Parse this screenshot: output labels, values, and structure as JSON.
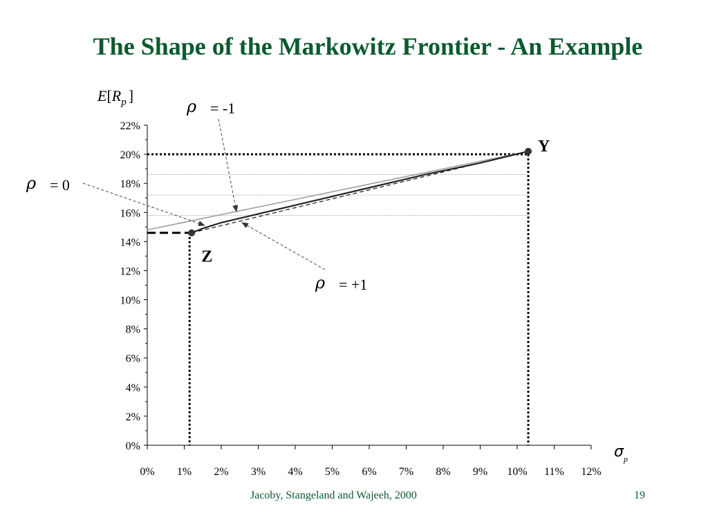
{
  "slide": {
    "title": "The Shape of the Markowitz Frontier - An Example",
    "footer_citation": "Jacoby, Stangeland and Wajeeh, 2000",
    "page_number": "19",
    "title_color": "#0b5a2e"
  },
  "chart_data": {
    "type": "line",
    "ylabel": {
      "E": "E",
      "open": "[",
      "R": "R",
      "sub": "p",
      "close": "]"
    },
    "xlabel": {
      "sigma": "σ",
      "sub": "p"
    },
    "x_ticks": [
      "0%",
      "1%",
      "2%",
      "3%",
      "4%",
      "5%",
      "6%",
      "7%",
      "8%",
      "9%",
      "10%",
      "11%",
      "12%"
    ],
    "y_ticks": [
      "0%",
      "2%",
      "4%",
      "6%",
      "8%",
      "10%",
      "12%",
      "14%",
      "16%",
      "18%",
      "20%",
      "22%"
    ],
    "xlim": [
      0,
      12
    ],
    "ylim": [
      0,
      22
    ],
    "points": [
      {
        "label": "Z",
        "x": 1.2,
        "y": 14.6
      },
      {
        "label": "Y",
        "x": 10.3,
        "y": 20.2
      }
    ],
    "series": [
      {
        "curve": "rho=-1",
        "color": "#999999",
        "style": "solid",
        "x": [
          0,
          10.3
        ],
        "y": [
          14.8,
          20.2
        ]
      },
      {
        "curve": "rho=0",
        "color": "#222222",
        "style": "solid",
        "x": [
          1.2,
          1.5,
          2.0,
          3.0,
          4.5,
          6.0,
          7.5,
          9.0,
          10.3
        ],
        "y": [
          14.6,
          14.9,
          15.3,
          15.9,
          16.8,
          17.7,
          18.6,
          19.4,
          20.2
        ]
      },
      {
        "curve": "rho=+1",
        "color": "#222222",
        "style": "dashed",
        "x": [
          1.2,
          10.3
        ],
        "y": [
          14.6,
          20.2
        ]
      }
    ],
    "guides": {
      "y_levels": [
        18.6,
        17.2,
        15.8
      ],
      "y_at_20": 20
    },
    "annotations": {
      "rho_symbol": "ρ",
      "rho_minus1": "= -1",
      "rho_zero": "= 0",
      "rho_plus1": "= +1"
    }
  }
}
